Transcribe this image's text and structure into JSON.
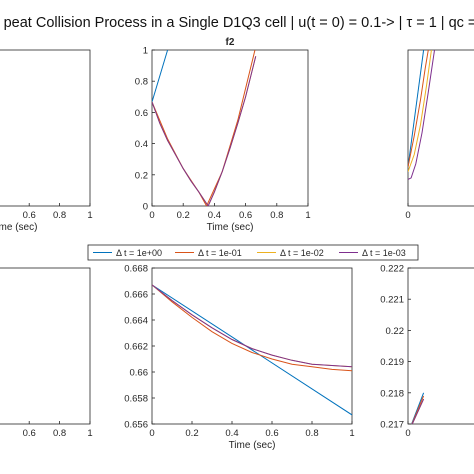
{
  "figure": {
    "title": "peat Collision Process in a Single D1Q3 cell | u(t = 0) = 0.1-> | τ = 1 | qc ="
  },
  "legend": {
    "entries": [
      "Δ t = 1e+00",
      "Δ t = 1e-01",
      "Δ t = 1e-02",
      "Δ t = 1e-03"
    ]
  },
  "colors": {
    "s1": "#0072BD",
    "s2": "#D95319",
    "s3": "#EDB120",
    "s4": "#7E2F8E"
  },
  "chart_data": [
    {
      "id": "top-left",
      "type": "line",
      "title": "",
      "xlabel": "Time (sec)",
      "xlim": [
        0,
        1
      ],
      "xtick_labels": [
        "0.6",
        "0.8",
        "1"
      ],
      "series": []
    },
    {
      "id": "top-center",
      "type": "line",
      "title": "f2",
      "xlabel": "Time (sec)",
      "xlim": [
        0,
        1
      ],
      "ylim": [
        0,
        1
      ],
      "xtick_labels": [
        "0",
        "0.2",
        "0.4",
        "0.6",
        "0.8",
        "1"
      ],
      "ytick_labels": [
        "0",
        "0.2",
        "0.4",
        "0.6",
        "0.8",
        "1"
      ],
      "series": [
        {
          "x": [
            0,
            0.1
          ],
          "y": [
            0.667,
            1.0
          ]
        },
        {
          "x": [
            0,
            0.1,
            0.2,
            0.3,
            0.35,
            0.45,
            0.55,
            0.66
          ],
          "y": [
            0.667,
            0.43,
            0.24,
            0.09,
            0.0,
            0.22,
            0.55,
            1.0
          ]
        },
        {
          "x": [
            0,
            0.05,
            0.1,
            0.15,
            0.2,
            0.25,
            0.3,
            0.35,
            0.36,
            0.4,
            0.45,
            0.5,
            0.55,
            0.6,
            0.65,
            0.665
          ],
          "y": [
            0.667,
            0.53,
            0.42,
            0.33,
            0.24,
            0.16,
            0.09,
            0.015,
            0.0,
            0.09,
            0.22,
            0.37,
            0.53,
            0.7,
            0.9,
            0.96
          ]
        },
        {
          "x": [
            0,
            0.05,
            0.1,
            0.15,
            0.2,
            0.25,
            0.3,
            0.35,
            0.36,
            0.4,
            0.45,
            0.5,
            0.55,
            0.6,
            0.65,
            0.665
          ],
          "y": [
            0.667,
            0.53,
            0.42,
            0.33,
            0.24,
            0.16,
            0.09,
            0.015,
            0.0,
            0.09,
            0.22,
            0.37,
            0.53,
            0.7,
            0.9,
            0.96
          ]
        }
      ]
    },
    {
      "id": "top-right",
      "type": "line",
      "title": "",
      "xlabel": "",
      "xlim": [
        0,
        1
      ],
      "ylim": [
        0,
        1
      ],
      "xtick_labels": [
        "0"
      ],
      "series": [
        {
          "x": [
            0,
            0.1
          ],
          "y": [
            0.25,
            1.0
          ]
        },
        {
          "x": [
            0,
            0.04,
            0.08,
            0.11,
            0.13
          ],
          "y": [
            0.25,
            0.45,
            0.68,
            0.88,
            1.0
          ]
        },
        {
          "x": [
            0,
            0.04,
            0.08,
            0.12,
            0.15
          ],
          "y": [
            0.22,
            0.33,
            0.52,
            0.78,
            1.0
          ]
        },
        {
          "x": [
            0,
            0.02,
            0.05,
            0.09,
            0.13,
            0.17
          ],
          "y": [
            0.17,
            0.18,
            0.27,
            0.47,
            0.73,
            1.0
          ]
        }
      ]
    },
    {
      "id": "bottom-left",
      "type": "line",
      "title": "",
      "xlabel": "",
      "xlim": [
        0,
        1
      ],
      "xtick_labels": [
        "0.6",
        "0.8",
        "1"
      ],
      "series": []
    },
    {
      "id": "bottom-center",
      "type": "line",
      "title": "",
      "xlabel": "Time (sec)",
      "xlim": [
        0,
        1
      ],
      "ylim": [
        0.656,
        0.668
      ],
      "xtick_labels": [
        "0",
        "0.2",
        "0.4",
        "0.6",
        "0.8",
        "1"
      ],
      "ytick_labels": [
        "0.656",
        "0.658",
        "0.66",
        "0.662",
        "0.664",
        "0.666",
        "0.668"
      ],
      "series": [
        {
          "x": [
            0,
            1
          ],
          "y": [
            0.6667,
            0.6567
          ]
        },
        {
          "x": [
            0,
            0.1,
            0.2,
            0.3,
            0.4,
            0.5,
            0.6,
            0.7,
            0.8,
            0.9,
            1.0
          ],
          "y": [
            0.6667,
            0.6654,
            0.6642,
            0.6631,
            0.6622,
            0.6615,
            0.661,
            0.6606,
            0.6604,
            0.6602,
            0.6601
          ]
        },
        {
          "x": [
            0,
            0.1,
            0.2,
            0.3,
            0.4,
            0.5,
            0.6,
            0.7,
            0.8,
            0.9,
            1.0
          ],
          "y": [
            0.6667,
            0.6655,
            0.6644,
            0.6634,
            0.6625,
            0.6618,
            0.6613,
            0.6609,
            0.6606,
            0.6605,
            0.6604
          ]
        },
        {
          "x": [
            0,
            0.1,
            0.2,
            0.3,
            0.4,
            0.5,
            0.6,
            0.7,
            0.8,
            0.9,
            1.0
          ],
          "y": [
            0.6667,
            0.6655,
            0.6644,
            0.6634,
            0.6625,
            0.6618,
            0.6613,
            0.6609,
            0.6606,
            0.6605,
            0.6604
          ]
        }
      ]
    },
    {
      "id": "bottom-right",
      "type": "line",
      "title": "",
      "xlabel": "",
      "xlim": [
        0,
        1
      ],
      "ylim": [
        0.217,
        0.222
      ],
      "xtick_labels": [
        "0"
      ],
      "ytick_labels": [
        "0.217",
        "0.218",
        "0.219",
        "0.22",
        "0.221",
        "0.222"
      ],
      "series": [
        {
          "x": [
            0,
            0.1
          ],
          "y": [
            0.2167,
            0.218
          ]
        },
        {
          "x": [
            0,
            0.1
          ],
          "y": [
            0.2167,
            0.2179
          ]
        },
        {
          "x": [
            0,
            0.1
          ],
          "y": [
            0.2167,
            0.2178
          ]
        },
        {
          "x": [
            0,
            0.1
          ],
          "y": [
            0.2167,
            0.2178
          ]
        }
      ]
    }
  ]
}
